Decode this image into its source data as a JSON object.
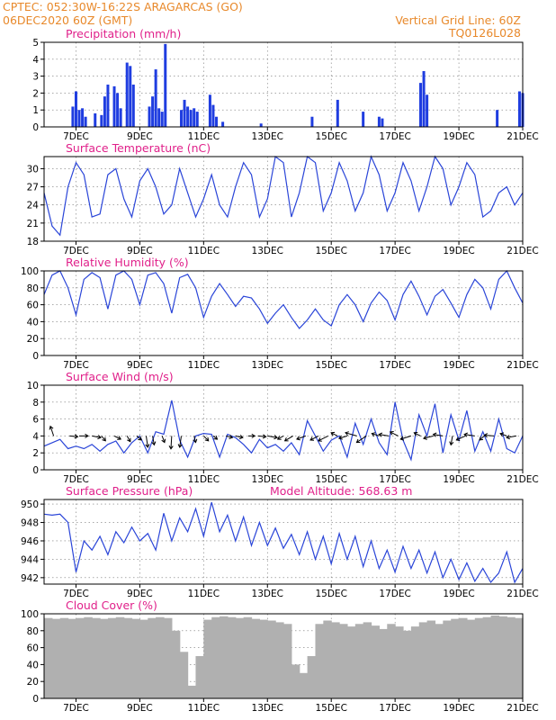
{
  "header": {
    "line1_left": "CPTEC:   052:30W-16:22S   ARAGARCAS (GO)",
    "line2_left": "06DEC2020 60Z (GMT)",
    "line1_right": "Vertical Grid Line: 60Z",
    "line2_right": "TQ0126L028"
  },
  "x_axis": {
    "labels": [
      "7DEC",
      "9DEC",
      "11DEC",
      "13DEC",
      "15DEC",
      "17DEC",
      "19DEC",
      "21DEC"
    ],
    "label_times": [
      1,
      3,
      5,
      7,
      9,
      11,
      13,
      15
    ],
    "xlim": [
      0,
      15
    ]
  },
  "chart_data": [
    {
      "id": "precip",
      "type": "bar",
      "title": "Precipitation (mm/h)",
      "ylim": [
        0,
        5
      ],
      "yticks": [
        0,
        1,
        2,
        3,
        4,
        5
      ],
      "x": [
        0.9,
        1.0,
        1.1,
        1.2,
        1.3,
        1.6,
        1.8,
        1.9,
        2.0,
        2.2,
        2.3,
        2.4,
        2.6,
        2.7,
        2.8,
        3.3,
        3.4,
        3.5,
        3.6,
        3.7,
        3.8,
        4.3,
        4.4,
        4.5,
        4.6,
        4.7,
        4.8,
        5.2,
        5.3,
        5.4,
        5.6,
        6.8,
        8.4,
        9.2,
        10.0,
        10.5,
        10.6,
        11.8,
        11.9,
        12.0,
        14.2,
        14.9,
        15.0
      ],
      "values": [
        1.2,
        2.1,
        1.0,
        1.1,
        0.6,
        0.8,
        0.7,
        1.8,
        2.5,
        2.4,
        2.0,
        1.1,
        3.8,
        3.6,
        2.5,
        1.2,
        1.8,
        3.4,
        1.1,
        0.9,
        4.9,
        1.0,
        1.6,
        1.2,
        1.0,
        1.1,
        0.9,
        1.9,
        1.3,
        0.6,
        0.3,
        0.2,
        0.6,
        1.6,
        0.9,
        0.6,
        0.5,
        2.6,
        3.3,
        1.9,
        1.0,
        2.1,
        2.0
      ]
    },
    {
      "id": "temp",
      "type": "line",
      "title": "Surface Temperature (nC)",
      "ylim": [
        18,
        32
      ],
      "yticks": [
        18,
        21,
        24,
        27,
        30
      ],
      "x": [
        0,
        0.25,
        0.5,
        0.75,
        1,
        1.25,
        1.5,
        1.75,
        2,
        2.25,
        2.5,
        2.75,
        3,
        3.25,
        3.5,
        3.75,
        4,
        4.25,
        4.5,
        4.75,
        5,
        5.25,
        5.5,
        5.75,
        6,
        6.25,
        6.5,
        6.75,
        7,
        7.25,
        7.5,
        7.75,
        8,
        8.25,
        8.5,
        8.75,
        9,
        9.25,
        9.5,
        9.75,
        10,
        10.25,
        10.5,
        10.75,
        11,
        11.25,
        11.5,
        11.75,
        12,
        12.25,
        12.5,
        12.75,
        13,
        13.25,
        13.5,
        13.75,
        14,
        14.25,
        14.5,
        14.75,
        15
      ],
      "values": [
        26,
        20.5,
        19,
        27,
        31,
        29,
        22,
        22.5,
        29,
        30,
        25,
        22,
        28,
        30,
        27,
        22.5,
        24,
        30,
        26,
        22,
        25,
        29,
        24,
        22,
        27,
        31,
        29,
        22,
        25,
        32,
        31,
        22,
        26,
        32,
        31,
        23,
        26,
        31,
        28,
        23,
        26,
        32,
        29,
        23,
        26,
        31,
        28,
        23,
        27,
        32,
        30,
        24,
        27,
        31,
        29,
        22,
        23,
        26,
        27,
        24,
        26
      ]
    },
    {
      "id": "rh",
      "type": "line",
      "title": "Relative Humidity (%)",
      "ylim": [
        0,
        100
      ],
      "yticks": [
        0,
        20,
        40,
        60,
        80,
        100
      ],
      "x": [
        0,
        0.25,
        0.5,
        0.75,
        1,
        1.25,
        1.5,
        1.75,
        2,
        2.25,
        2.5,
        2.75,
        3,
        3.25,
        3.5,
        3.75,
        4,
        4.25,
        4.5,
        4.75,
        5,
        5.25,
        5.5,
        5.75,
        6,
        6.25,
        6.5,
        6.75,
        7,
        7.25,
        7.5,
        7.75,
        8,
        8.25,
        8.5,
        8.75,
        9,
        9.25,
        9.5,
        9.75,
        10,
        10.25,
        10.5,
        10.75,
        11,
        11.25,
        11.5,
        11.75,
        12,
        12.25,
        12.5,
        12.75,
        13,
        13.25,
        13.5,
        13.75,
        14,
        14.25,
        14.5,
        14.75,
        15
      ],
      "values": [
        72,
        95,
        100,
        80,
        48,
        90,
        98,
        92,
        55,
        95,
        100,
        90,
        60,
        95,
        98,
        85,
        50,
        92,
        96,
        80,
        45,
        70,
        85,
        72,
        58,
        70,
        68,
        55,
        38,
        50,
        60,
        45,
        32,
        42,
        55,
        42,
        35,
        60,
        72,
        60,
        40,
        62,
        75,
        65,
        42,
        72,
        88,
        70,
        48,
        70,
        78,
        62,
        45,
        72,
        90,
        80,
        55,
        90,
        100,
        80,
        62
      ]
    },
    {
      "id": "wind",
      "type": "line",
      "title": "Surface Wind (m/s)",
      "ylim": [
        0,
        10
      ],
      "yticks": [
        0,
        2,
        4,
        6,
        8,
        10
      ],
      "x": [
        0,
        0.25,
        0.5,
        0.75,
        1,
        1.25,
        1.5,
        1.75,
        2,
        2.25,
        2.5,
        2.75,
        3,
        3.25,
        3.5,
        3.75,
        4,
        4.25,
        4.5,
        4.75,
        5,
        5.25,
        5.5,
        5.75,
        6,
        6.25,
        6.5,
        6.75,
        7,
        7.25,
        7.5,
        7.75,
        8,
        8.25,
        8.5,
        8.75,
        9,
        9.25,
        9.5,
        9.75,
        10,
        10.25,
        10.5,
        10.75,
        11,
        11.25,
        11.5,
        11.75,
        12,
        12.25,
        12.5,
        12.75,
        13,
        13.25,
        13.5,
        13.75,
        14,
        14.25,
        14.5,
        14.75,
        15
      ],
      "values": [
        2.8,
        3.2,
        3.6,
        2.5,
        2.8,
        2.5,
        3.0,
        2.2,
        3.0,
        3.4,
        2.0,
        3.2,
        4.0,
        2.0,
        4.5,
        4.2,
        8.2,
        3.5,
        1.5,
        4.0,
        4.3,
        4.2,
        1.5,
        4.2,
        3.8,
        3.0,
        2.0,
        3.6,
        2.6,
        3.0,
        2.2,
        3.2,
        1.8,
        5.8,
        4.0,
        2.2,
        3.5,
        4.0,
        1.5,
        5.5,
        3.0,
        6.0,
        3.2,
        1.8,
        8.0,
        3.5,
        1.2,
        6.5,
        4.0,
        7.8,
        2.0,
        6.5,
        3.5,
        7.0,
        2.2,
        4.5,
        2.2,
        6.0,
        2.5,
        2.0,
        4.0
      ]
    },
    {
      "id": "pressure",
      "type": "line",
      "title": "Surface Pressure (hPa)",
      "subtitle": "Model Altitude: 568.63 m",
      "ylim": [
        941.3,
        950.5
      ],
      "yticks": [
        942,
        944,
        946,
        948,
        950
      ],
      "x": [
        0,
        0.25,
        0.5,
        0.75,
        1,
        1.25,
        1.5,
        1.75,
        2,
        2.25,
        2.5,
        2.75,
        3,
        3.25,
        3.5,
        3.75,
        4,
        4.25,
        4.5,
        4.75,
        5,
        5.25,
        5.5,
        5.75,
        6,
        6.25,
        6.5,
        6.75,
        7,
        7.25,
        7.5,
        7.75,
        8,
        8.25,
        8.5,
        8.75,
        9,
        9.25,
        9.5,
        9.75,
        10,
        10.25,
        10.5,
        10.75,
        11,
        11.25,
        11.5,
        11.75,
        12,
        12.25,
        12.5,
        12.75,
        13,
        13.25,
        13.5,
        13.75,
        14,
        14.25,
        14.5,
        14.75,
        15
      ],
      "values": [
        948.9,
        948.8,
        948.9,
        948.0,
        942.6,
        946.0,
        945.0,
        946.5,
        944.5,
        947.0,
        945.8,
        947.5,
        946.0,
        946.8,
        945.0,
        949.0,
        946.0,
        948.5,
        947.0,
        949.5,
        946.5,
        950.2,
        947.0,
        948.8,
        946.0,
        948.6,
        945.5,
        948.0,
        945.5,
        947.4,
        945.2,
        946.7,
        944.5,
        947.0,
        944.0,
        946.5,
        943.5,
        946.8,
        944.0,
        946.5,
        943.2,
        946.0,
        943.0,
        945.0,
        942.6,
        945.4,
        943.0,
        945.0,
        942.5,
        944.8,
        942.0,
        944.0,
        941.8,
        943.6,
        941.6,
        943.0,
        941.5,
        942.5,
        944.8,
        941.5,
        943.0
      ]
    },
    {
      "id": "cloud",
      "type": "bar",
      "title": "Cloud Cover (%)",
      "ylim": [
        0,
        100
      ],
      "yticks": [
        0,
        20,
        40,
        60,
        80,
        100
      ],
      "x": [
        0,
        0.25,
        0.5,
        0.75,
        1,
        1.25,
        1.5,
        1.75,
        2,
        2.25,
        2.5,
        2.75,
        3,
        3.25,
        3.5,
        3.75,
        4,
        4.25,
        4.5,
        4.75,
        5,
        5.25,
        5.5,
        5.75,
        6,
        6.25,
        6.5,
        6.75,
        7,
        7.25,
        7.5,
        7.75,
        8,
        8.25,
        8.5,
        8.75,
        9,
        9.25,
        9.5,
        9.75,
        10,
        10.25,
        10.5,
        10.75,
        11,
        11.25,
        11.5,
        11.75,
        12,
        12.25,
        12.5,
        12.75,
        13,
        13.25,
        13.5,
        13.75,
        14,
        14.25,
        14.5,
        14.75
      ],
      "values": [
        95,
        94,
        95,
        94,
        95,
        96,
        95,
        94,
        95,
        96,
        95,
        94,
        93,
        95,
        96,
        95,
        80,
        55,
        15,
        50,
        93,
        96,
        97,
        96,
        95,
        96,
        94,
        93,
        92,
        90,
        88,
        40,
        30,
        50,
        88,
        92,
        90,
        88,
        85,
        88,
        90,
        86,
        82,
        88,
        85,
        80,
        85,
        90,
        92,
        88,
        92,
        94,
        95,
        93,
        95,
        96,
        98,
        97,
        96,
        95
      ]
    }
  ],
  "wind_vectors": {
    "x": [
      0.3,
      0.8,
      1.1,
      1.5,
      1.8,
      2.2,
      2.6,
      2.9,
      3.2,
      3.4,
      3.7,
      4.0,
      4.3,
      4.7,
      5.0,
      5.3,
      5.7,
      6.0,
      6.4,
      6.7,
      7.0,
      7.5,
      7.8,
      8.2,
      8.6,
      8.9,
      9.2,
      9.5,
      9.8,
      10.1,
      10.5,
      10.8,
      11.1,
      11.5,
      11.8,
      12.2,
      12.5,
      12.8,
      13.2,
      13.5,
      13.8,
      14.1,
      14.5,
      14.8
    ],
    "u": [
      -0.4,
      1.0,
      1.1,
      1.1,
      0.5,
      0.8,
      0.4,
      0.6,
      0.2,
      0.2,
      0.3,
      -0.1,
      -0.2,
      0.2,
      0.6,
      0.5,
      0.8,
      0.9,
      0.8,
      1.0,
      1.2,
      -0.7,
      -1.0,
      -1.1,
      -1.0,
      -1.2,
      -0.8,
      -1.0,
      -1.4,
      -1.2,
      -0.9,
      -1.2,
      -1.0,
      -1.3,
      -0.8,
      -1.2,
      -1.2,
      -0.2,
      -1.1,
      -1.3,
      -0.6,
      -1.2,
      -0.8,
      -1.2
    ],
    "v": [
      1.2,
      -0.1,
      0.0,
      -0.2,
      -0.6,
      -0.4,
      -0.7,
      -0.5,
      -1.4,
      -1.1,
      -0.8,
      -1.6,
      -1.4,
      -0.8,
      -0.6,
      -0.4,
      -0.2,
      -0.2,
      0.0,
      -0.1,
      -0.2,
      -0.4,
      -0.6,
      -0.4,
      -0.5,
      -0.6,
      0.4,
      -0.3,
      0.4,
      -0.8,
      0.3,
      0.2,
      0.5,
      -0.4,
      0.4,
      -0.3,
      0.2,
      -1.1,
      -0.5,
      0.2,
      -0.5,
      0.1,
      0.3,
      -0.2
    ]
  }
}
